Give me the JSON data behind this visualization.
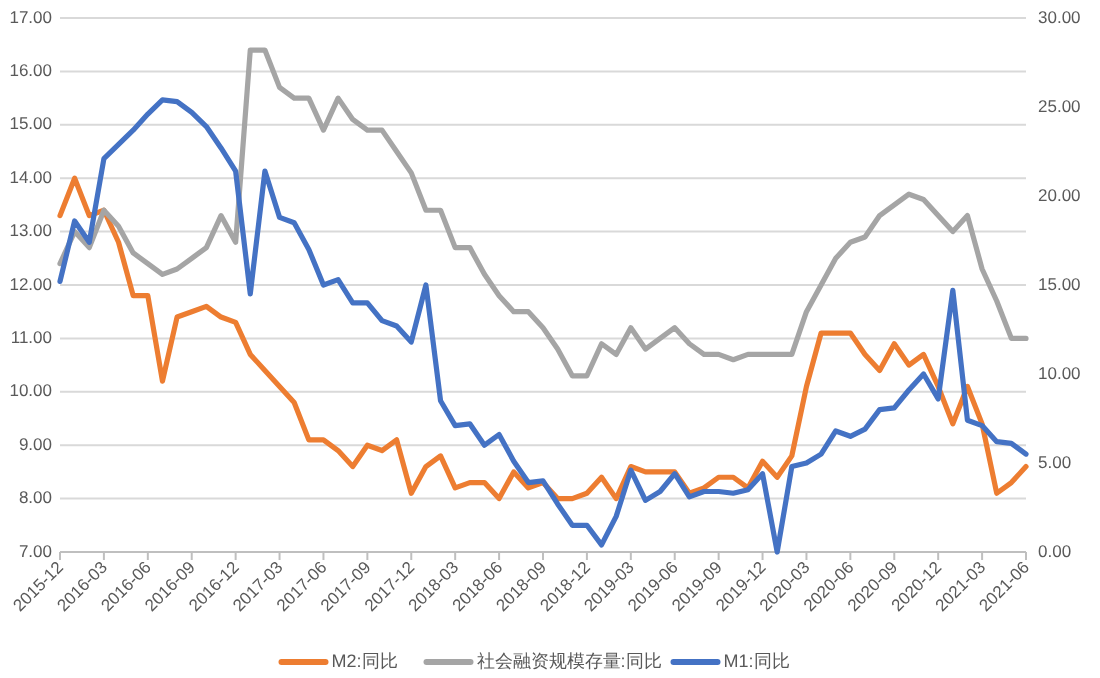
{
  "chart_data": {
    "type": "line",
    "categories": [
      "2015-12",
      null,
      null,
      "2016-03",
      null,
      null,
      "2016-06",
      null,
      null,
      "2016-09",
      null,
      null,
      "2016-12",
      null,
      null,
      "2017-03",
      null,
      null,
      "2017-06",
      null,
      null,
      "2017-09",
      null,
      null,
      "2017-12",
      null,
      null,
      "2018-03",
      null,
      null,
      "2018-06",
      null,
      null,
      "2018-09",
      null,
      null,
      "2018-12",
      null,
      null,
      "2019-03",
      null,
      null,
      "2019-06",
      null,
      null,
      "2019-09",
      null,
      null,
      "2019-12",
      null,
      null,
      "2020-03",
      null,
      null,
      "2020-06",
      null,
      null,
      "2020-09",
      null,
      null,
      "2020-12",
      null,
      null,
      "2021-03",
      null,
      null,
      "2021-06"
    ],
    "series": [
      {
        "name": "M2:同比",
        "color": "#ed7d31",
        "values": [
          13.3,
          14.0,
          13.3,
          13.4,
          12.8,
          11.8,
          11.8,
          10.2,
          11.4,
          11.5,
          11.6,
          11.4,
          11.3,
          10.7,
          10.4,
          10.1,
          9.8,
          9.1,
          9.1,
          8.9,
          8.6,
          9.0,
          8.9,
          9.1,
          8.1,
          8.6,
          8.8,
          8.2,
          8.3,
          8.3,
          8.0,
          8.5,
          8.2,
          8.3,
          8.0,
          8.0,
          8.1,
          8.4,
          8.0,
          8.6,
          8.5,
          8.5,
          8.5,
          8.1,
          8.2,
          8.4,
          8.4,
          8.2,
          8.7,
          8.4,
          8.8,
          10.1,
          11.1,
          11.1,
          11.1,
          10.7,
          10.4,
          10.9,
          10.5,
          10.7,
          10.1,
          9.4,
          10.1,
          9.4,
          8.1,
          8.3,
          8.6
        ]
      },
      {
        "name": "社会融资规模存量:同比",
        "color": "#a5a5a5",
        "values": [
          12.4,
          13.0,
          12.7,
          13.4,
          13.1,
          12.6,
          12.4,
          12.2,
          12.3,
          12.5,
          12.7,
          13.3,
          12.8,
          16.4,
          16.4,
          15.7,
          15.5,
          15.5,
          14.9,
          15.5,
          15.1,
          14.9,
          14.9,
          14.5,
          14.1,
          13.4,
          13.4,
          12.7,
          12.7,
          12.2,
          11.8,
          11.5,
          11.5,
          11.2,
          10.8,
          10.3,
          10.3,
          10.9,
          10.7,
          11.2,
          10.8,
          11.0,
          11.2,
          10.9,
          10.7,
          10.7,
          10.6,
          10.7,
          10.7,
          10.7,
          10.7,
          11.5,
          12.0,
          12.5,
          12.8,
          12.9,
          13.3,
          13.5,
          13.7,
          13.6,
          13.3,
          13.0,
          13.3,
          12.3,
          11.7,
          11.0,
          11.0
        ]
      },
      {
        "name": "M1:同比",
        "color": "#4472c4",
        "axis": "y2",
        "values": [
          15.2,
          18.6,
          17.4,
          22.1,
          22.9,
          23.7,
          24.6,
          25.4,
          25.3,
          24.7,
          23.9,
          22.7,
          21.4,
          14.5,
          21.4,
          18.8,
          18.5,
          17.0,
          15.0,
          15.3,
          14.0,
          14.0,
          13.0,
          12.7,
          11.8,
          15.0,
          8.5,
          7.1,
          7.2,
          6.0,
          6.6,
          5.1,
          3.9,
          4.0,
          2.7,
          1.5,
          1.5,
          0.4,
          2.0,
          4.6,
          2.9,
          3.4,
          4.4,
          3.1,
          3.4,
          3.4,
          3.3,
          3.5,
          4.4,
          0.0,
          4.8,
          5.0,
          5.5,
          6.8,
          6.5,
          6.9,
          8.0,
          8.1,
          9.1,
          10.0,
          8.6,
          14.7,
          7.4,
          7.1,
          6.2,
          6.1,
          5.5
        ]
      }
    ],
    "ylim": [
      7,
      17
    ],
    "yticks": [
      {
        "value": 7,
        "label": "7.00"
      },
      {
        "value": 8,
        "label": "8.00"
      },
      {
        "value": 9,
        "label": "9.00"
      },
      {
        "value": 10,
        "label": "10.00"
      },
      {
        "value": 11,
        "label": "11.00"
      },
      {
        "value": 12,
        "label": "12.00"
      },
      {
        "value": 13,
        "label": "13.00"
      },
      {
        "value": 14,
        "label": "14.00"
      },
      {
        "value": 15,
        "label": "15.00"
      },
      {
        "value": 16,
        "label": "16.00"
      },
      {
        "value": 17,
        "label": "17.00"
      }
    ],
    "y2lim": [
      0,
      30
    ],
    "y2ticks": [
      {
        "value": 0,
        "label": "0.00"
      },
      {
        "value": 5,
        "label": "5.00"
      },
      {
        "value": 10,
        "label": "10.00"
      },
      {
        "value": 15,
        "label": "15.00"
      },
      {
        "value": 20,
        "label": "20.00"
      },
      {
        "value": 25,
        "label": "25.00"
      },
      {
        "value": 30,
        "label": "30.00"
      }
    ],
    "grid": "y",
    "legend": "bottom",
    "marker": "none",
    "line_style": "solid"
  }
}
